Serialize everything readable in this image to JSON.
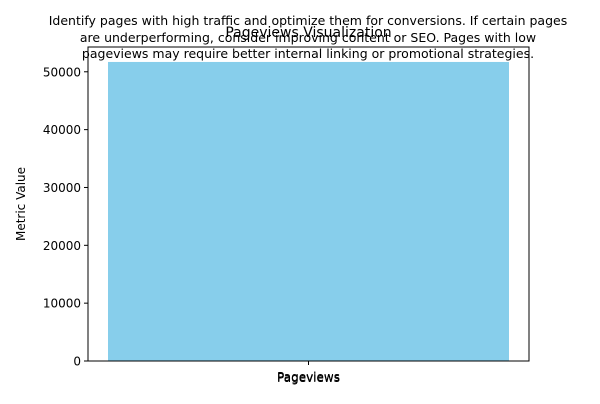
{
  "chart_data": {
    "type": "bar",
    "title": "Pageviews Visualization",
    "insight_lines": [
      "Identify pages with high traffic and optimize them for conversions. If certain pages",
      "are underperforming, consider improving content or SEO. Pages with low",
      "pageviews may require better internal linking or promotional strategies."
    ],
    "categories": [
      "Pageviews"
    ],
    "values": [
      51700
    ],
    "xlabel": "Pageviews",
    "ylabel": "Metric Value",
    "ylim": [
      0,
      54285
    ],
    "yticks": [
      0,
      10000,
      20000,
      30000,
      40000,
      50000
    ],
    "bar_color": "#87CEEB",
    "grid": false,
    "legend": "none"
  }
}
